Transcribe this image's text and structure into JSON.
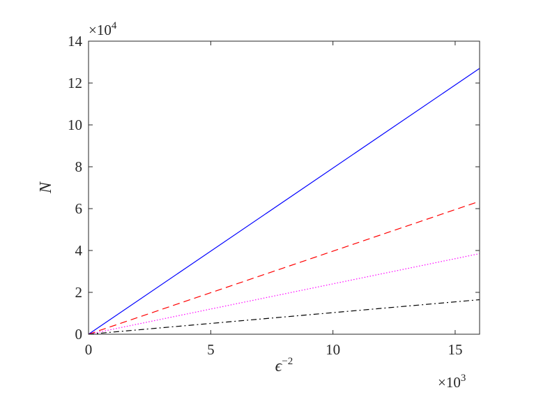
{
  "chart_data": {
    "type": "line",
    "xlabel_base": "ϵ",
    "xlabel_exp": "−2",
    "ylabel": "N",
    "x_multiplier": {
      "base": "×10",
      "exp": "3"
    },
    "y_multiplier": {
      "base": "×10",
      "exp": "4"
    },
    "xlim": [
      0,
      16
    ],
    "ylim": [
      0,
      14
    ],
    "xticks": [
      0,
      5,
      10,
      15
    ],
    "yticks": [
      0,
      2,
      4,
      6,
      8,
      10,
      12,
      14
    ],
    "grid": false,
    "series": [
      {
        "style": "solid",
        "color": "#0000ff",
        "x": [
          0,
          16
        ],
        "y": [
          0,
          12.7
        ]
      },
      {
        "style": "dashed",
        "color": "#ff0000",
        "x": [
          0,
          16
        ],
        "y": [
          0,
          6.35
        ]
      },
      {
        "style": "dotted",
        "color": "#ff00ff",
        "x": [
          0,
          16
        ],
        "y": [
          0,
          3.85
        ]
      },
      {
        "style": "dashdot",
        "color": "#000000",
        "x": [
          0,
          16
        ],
        "y": [
          0,
          1.65
        ]
      }
    ]
  }
}
